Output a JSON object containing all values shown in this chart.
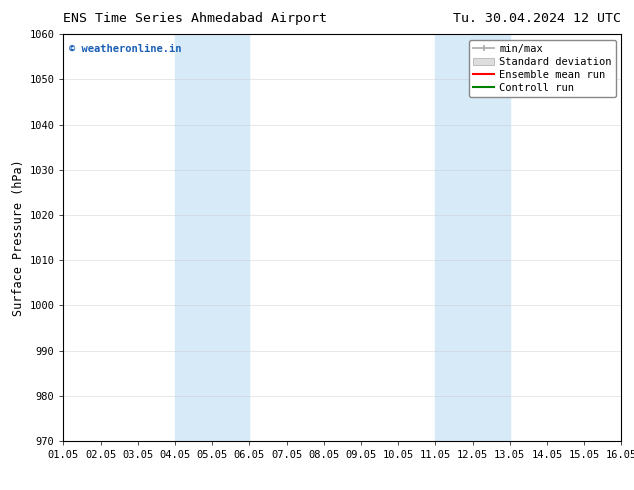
{
  "title_left": "ENS Time Series Ahmedabad Airport",
  "title_right": "Tu. 30.04.2024 12 UTC",
  "ylabel": "Surface Pressure (hPa)",
  "ylim": [
    970,
    1060
  ],
  "yticks": [
    970,
    980,
    990,
    1000,
    1010,
    1020,
    1030,
    1040,
    1050,
    1060
  ],
  "xtick_labels": [
    "01.05",
    "02.05",
    "03.05",
    "04.05",
    "05.05",
    "06.05",
    "07.05",
    "08.05",
    "09.05",
    "10.05",
    "11.05",
    "12.05",
    "13.05",
    "14.05",
    "15.05",
    "16.05"
  ],
  "xtick_positions": [
    0,
    1,
    2,
    3,
    4,
    5,
    6,
    7,
    8,
    9,
    10,
    11,
    12,
    13,
    14,
    15
  ],
  "shaded_regions": [
    {
      "x_start": 3,
      "x_end": 5,
      "color": "#d6eaf8"
    },
    {
      "x_start": 10,
      "x_end": 12,
      "color": "#d6eaf8"
    }
  ],
  "watermark_text": "© weatheronline.in",
  "watermark_color": "#1a5fb4",
  "background_color": "#ffffff",
  "legend_labels": [
    "min/max",
    "Standard deviation",
    "Ensemble mean run",
    "Controll run"
  ],
  "legend_colors": [
    "#aaaaaa",
    "#cccccc",
    "#ff0000",
    "#008000"
  ],
  "title_fontsize": 9.5,
  "tick_fontsize": 7.5,
  "ylabel_fontsize": 8.5,
  "watermark_fontsize": 7.5,
  "legend_fontsize": 7.5
}
